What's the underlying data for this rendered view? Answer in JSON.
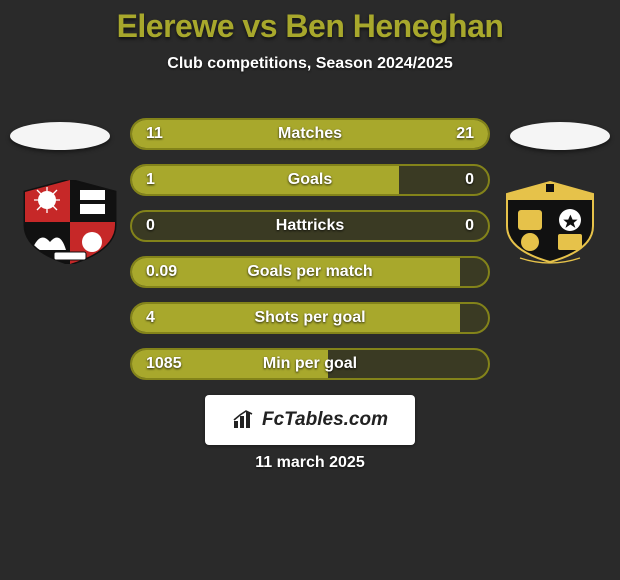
{
  "title": "Elerewe vs Ben Heneghan",
  "subtitle": "Club competitions, Season 2024/2025",
  "date": "11 march 2025",
  "fctables_label": "FcTables.com",
  "colors": {
    "accent": "#a8a82c",
    "outline": "#83831a",
    "bg": "#2a2a2a",
    "bar_bg": "#3a3a23"
  },
  "rows": [
    {
      "category": "Matches",
      "left_val": "11",
      "right_val": "21",
      "left_pct": 34,
      "right_pct": 66
    },
    {
      "category": "Goals",
      "left_val": "1",
      "right_val": "0",
      "left_pct": 75,
      "right_pct": 0
    },
    {
      "category": "Hattricks",
      "left_val": "0",
      "right_val": "0",
      "left_pct": 0,
      "right_pct": 0
    },
    {
      "category": "Goals per match",
      "left_val": "0.09",
      "right_val": "",
      "left_pct": 92,
      "right_pct": 0
    },
    {
      "category": "Shots per goal",
      "left_val": "4",
      "right_val": "",
      "left_pct": 92,
      "right_pct": 0
    },
    {
      "category": "Min per goal",
      "left_val": "1085",
      "right_val": "",
      "left_pct": 55,
      "right_pct": 0
    }
  ]
}
